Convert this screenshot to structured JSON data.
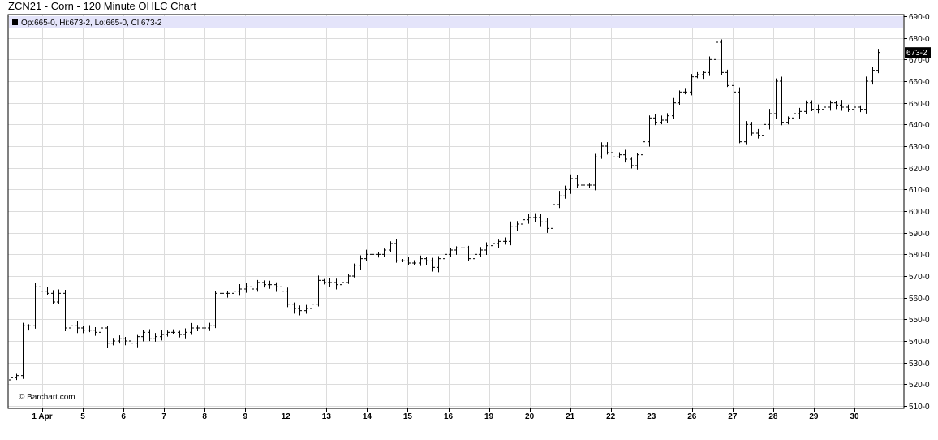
{
  "chart_data": {
    "type": "ohlc",
    "title": "ZCN21 - Corn - 120 Minute OHLC Chart",
    "legend": {
      "text": "Op:665-0, Hi:673-2, Lo:665-0, Cl:673-2",
      "open": 665.0,
      "high": 673.25,
      "low": 665.0,
      "close": 673.25
    },
    "last_price_label": "673-2",
    "last_price": 673.25,
    "watermark": "© Barchart.com",
    "ylim": [
      510,
      690
    ],
    "y_ticks": [
      {
        "value": 690,
        "label": "690-0"
      },
      {
        "value": 680,
        "label": "680-0"
      },
      {
        "value": 670,
        "label": "670-0"
      },
      {
        "value": 660,
        "label": "660-0"
      },
      {
        "value": 650,
        "label": "650-0"
      },
      {
        "value": 640,
        "label": "640-0"
      },
      {
        "value": 630,
        "label": "630-0"
      },
      {
        "value": 620,
        "label": "620-0"
      },
      {
        "value": 610,
        "label": "610-0"
      },
      {
        "value": 600,
        "label": "600-0"
      },
      {
        "value": 590,
        "label": "590-0"
      },
      {
        "value": 580,
        "label": "580-0"
      },
      {
        "value": 570,
        "label": "570-0"
      },
      {
        "value": 560,
        "label": "560-0"
      },
      {
        "value": 550,
        "label": "550-0"
      },
      {
        "value": 540,
        "label": "540-0"
      },
      {
        "value": 530,
        "label": "530-0"
      },
      {
        "value": 520,
        "label": "520-0"
      },
      {
        "value": 510,
        "label": "510-0"
      }
    ],
    "x_tick_labels": [
      "1 Apr",
      "5",
      "6",
      "7",
      "8",
      "9",
      "12",
      "13",
      "14",
      "15",
      "16",
      "19",
      "20",
      "21",
      "22",
      "23",
      "26",
      "27",
      "28",
      "29",
      "30"
    ],
    "grid": true,
    "colors": {
      "bars": "#000000",
      "legend_band": "#e4e4fa",
      "grid": "#dcdcdc",
      "last_price_bg": "#000000",
      "last_price_text": "#ffffff"
    },
    "key_path": [
      [
        0,
        523
      ],
      [
        1,
        524
      ],
      [
        2,
        547
      ],
      [
        3,
        547
      ],
      [
        4,
        565
      ],
      [
        5,
        563
      ],
      [
        6,
        562
      ],
      [
        7,
        558
      ],
      [
        8,
        562
      ],
      [
        9,
        546
      ],
      [
        10,
        547
      ],
      [
        11,
        546
      ],
      [
        12,
        545
      ],
      [
        13,
        545
      ],
      [
        14,
        544
      ],
      [
        15,
        546
      ],
      [
        16,
        539
      ],
      [
        17,
        540
      ],
      [
        18,
        541
      ],
      [
        19,
        540
      ],
      [
        20,
        539
      ],
      [
        21,
        542
      ],
      [
        22,
        544
      ],
      [
        23,
        541
      ],
      [
        24,
        542
      ],
      [
        25,
        543
      ],
      [
        26,
        544
      ],
      [
        27,
        544
      ],
      [
        28,
        543
      ],
      [
        29,
        544
      ],
      [
        30,
        546
      ],
      [
        31,
        546
      ],
      [
        32,
        546
      ],
      [
        33,
        547
      ],
      [
        34,
        562
      ],
      [
        35,
        562
      ],
      [
        36,
        562
      ],
      [
        37,
        563
      ],
      [
        38,
        564
      ],
      [
        39,
        565
      ],
      [
        40,
        564
      ],
      [
        41,
        567
      ],
      [
        42,
        566
      ],
      [
        43,
        566
      ],
      [
        44,
        565
      ],
      [
        45,
        563
      ],
      [
        46,
        557
      ],
      [
        47,
        555
      ],
      [
        48,
        554
      ],
      [
        49,
        555
      ],
      [
        50,
        557
      ],
      [
        51,
        568
      ],
      [
        52,
        567
      ],
      [
        53,
        567
      ],
      [
        54,
        566
      ],
      [
        55,
        567
      ],
      [
        56,
        570
      ],
      [
        57,
        575
      ],
      [
        58,
        578
      ],
      [
        59,
        580
      ],
      [
        60,
        580
      ],
      [
        61,
        580
      ],
      [
        62,
        582
      ],
      [
        63,
        585
      ],
      [
        64,
        577
      ],
      [
        65,
        577
      ],
      [
        66,
        576
      ],
      [
        67,
        576
      ],
      [
        68,
        578
      ],
      [
        69,
        577
      ],
      [
        70,
        574
      ],
      [
        71,
        578
      ],
      [
        72,
        580
      ],
      [
        73,
        582
      ],
      [
        74,
        583
      ],
      [
        75,
        583
      ],
      [
        76,
        578
      ],
      [
        77,
        580
      ],
      [
        78,
        582
      ],
      [
        79,
        584
      ],
      [
        80,
        585
      ],
      [
        81,
        586
      ],
      [
        82,
        586
      ],
      [
        83,
        593
      ],
      [
        84,
        594
      ],
      [
        85,
        596
      ],
      [
        86,
        597
      ],
      [
        87,
        597
      ],
      [
        88,
        595
      ],
      [
        89,
        592
      ],
      [
        90,
        603
      ],
      [
        91,
        607
      ],
      [
        92,
        610
      ],
      [
        93,
        615
      ],
      [
        94,
        612
      ],
      [
        95,
        612
      ],
      [
        96,
        612
      ],
      [
        97,
        625
      ],
      [
        98,
        630
      ],
      [
        99,
        627
      ],
      [
        100,
        625
      ],
      [
        101,
        626
      ],
      [
        102,
        624
      ],
      [
        103,
        621
      ],
      [
        104,
        626
      ],
      [
        105,
        632
      ],
      [
        106,
        643
      ],
      [
        107,
        641
      ],
      [
        108,
        642
      ],
      [
        109,
        644
      ],
      [
        110,
        650
      ],
      [
        111,
        655
      ],
      [
        112,
        655
      ],
      [
        113,
        662
      ],
      [
        114,
        663
      ],
      [
        115,
        664
      ],
      [
        116,
        670
      ],
      [
        117,
        678
      ],
      [
        118,
        664
      ],
      [
        119,
        658
      ],
      [
        120,
        655
      ],
      [
        121,
        632
      ],
      [
        122,
        640
      ],
      [
        123,
        636
      ],
      [
        124,
        635
      ],
      [
        125,
        640
      ],
      [
        126,
        645
      ],
      [
        127,
        660
      ],
      [
        128,
        641
      ],
      [
        129,
        643
      ],
      [
        130,
        645
      ],
      [
        131,
        646
      ],
      [
        132,
        650
      ],
      [
        133,
        647
      ],
      [
        134,
        647
      ],
      [
        135,
        648
      ],
      [
        136,
        650
      ],
      [
        137,
        649
      ],
      [
        138,
        648
      ],
      [
        139,
        647
      ],
      [
        140,
        648
      ],
      [
        141,
        647
      ],
      [
        142,
        660
      ],
      [
        143,
        665
      ],
      [
        144,
        673.25
      ]
    ]
  }
}
